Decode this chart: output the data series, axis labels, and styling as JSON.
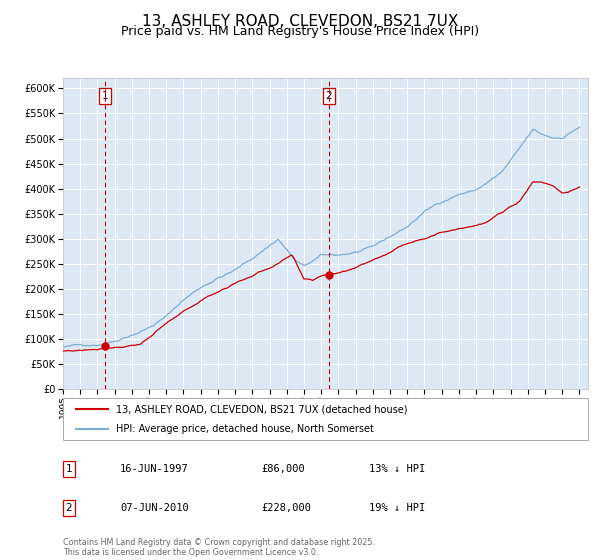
{
  "title": "13, ASHLEY ROAD, CLEVEDON, BS21 7UX",
  "subtitle": "Price paid vs. HM Land Registry's House Price Index (HPI)",
  "legend_label_red": "13, ASHLEY ROAD, CLEVEDON, BS21 7UX (detached house)",
  "legend_label_blue": "HPI: Average price, detached house, North Somerset",
  "footer": "Contains HM Land Registry data © Crown copyright and database right 2025.\nThis data is licensed under the Open Government Licence v3.0.",
  "table": [
    {
      "num": "1",
      "date": "16-JUN-1997",
      "price": "£86,000",
      "hpi": "13% ↓ HPI"
    },
    {
      "num": "2",
      "date": "07-JUN-2010",
      "price": "£228,000",
      "hpi": "19% ↓ HPI"
    }
  ],
  "vline1_year": 1997.46,
  "vline2_year": 2010.44,
  "marker1_x": 1997.46,
  "marker1_y": 86000,
  "marker2_x": 2010.44,
  "marker2_y": 228000,
  "ylim": [
    0,
    620000
  ],
  "yticks": [
    0,
    50000,
    100000,
    150000,
    200000,
    250000,
    300000,
    350000,
    400000,
    450000,
    500000,
    550000,
    600000
  ],
  "plot_background": "#dce9f5",
  "red_color": "#cc0000",
  "blue_color": "#7aadd4",
  "title_fontsize": 11,
  "subtitle_fontsize": 9,
  "xlim_start": 1995.0,
  "xlim_end": 2025.5,
  "hpi_anchors": [
    [
      1995.0,
      84000
    ],
    [
      1996.0,
      87000
    ],
    [
      1997.0,
      90000
    ],
    [
      1998.0,
      100000
    ],
    [
      1999.0,
      115000
    ],
    [
      2000.0,
      130000
    ],
    [
      2001.0,
      152000
    ],
    [
      2002.0,
      185000
    ],
    [
      2003.0,
      210000
    ],
    [
      2004.0,
      230000
    ],
    [
      2005.0,
      245000
    ],
    [
      2006.0,
      268000
    ],
    [
      2007.5,
      308000
    ],
    [
      2008.5,
      265000
    ],
    [
      2009.0,
      252000
    ],
    [
      2010.0,
      272000
    ],
    [
      2011.0,
      272000
    ],
    [
      2012.0,
      278000
    ],
    [
      2013.0,
      285000
    ],
    [
      2014.0,
      305000
    ],
    [
      2015.0,
      325000
    ],
    [
      2016.0,
      355000
    ],
    [
      2017.0,
      375000
    ],
    [
      2018.0,
      392000
    ],
    [
      2019.0,
      400000
    ],
    [
      2020.5,
      435000
    ],
    [
      2021.5,
      478000
    ],
    [
      2022.3,
      515000
    ],
    [
      2022.8,
      505000
    ],
    [
      2023.5,
      498000
    ],
    [
      2024.0,
      500000
    ],
    [
      2025.0,
      522000
    ]
  ],
  "red_anchors": [
    [
      1995.0,
      76000
    ],
    [
      1996.0,
      78000
    ],
    [
      1997.0,
      82000
    ],
    [
      1997.46,
      86000
    ],
    [
      1998.5,
      90000
    ],
    [
      1999.5,
      97000
    ],
    [
      2001.0,
      135000
    ],
    [
      2002.5,
      168000
    ],
    [
      2003.5,
      188000
    ],
    [
      2005.0,
      215000
    ],
    [
      2006.5,
      238000
    ],
    [
      2007.5,
      255000
    ],
    [
      2008.3,
      270000
    ],
    [
      2009.0,
      218000
    ],
    [
      2009.5,
      215000
    ],
    [
      2010.0,
      225000
    ],
    [
      2010.44,
      228000
    ],
    [
      2011.0,
      232000
    ],
    [
      2012.0,
      245000
    ],
    [
      2013.5,
      268000
    ],
    [
      2015.0,
      295000
    ],
    [
      2016.5,
      315000
    ],
    [
      2017.5,
      325000
    ],
    [
      2018.5,
      335000
    ],
    [
      2019.5,
      342000
    ],
    [
      2020.5,
      362000
    ],
    [
      2021.5,
      385000
    ],
    [
      2022.3,
      425000
    ],
    [
      2022.8,
      425000
    ],
    [
      2023.5,
      418000
    ],
    [
      2024.0,
      405000
    ],
    [
      2024.5,
      410000
    ],
    [
      2025.0,
      415000
    ]
  ]
}
